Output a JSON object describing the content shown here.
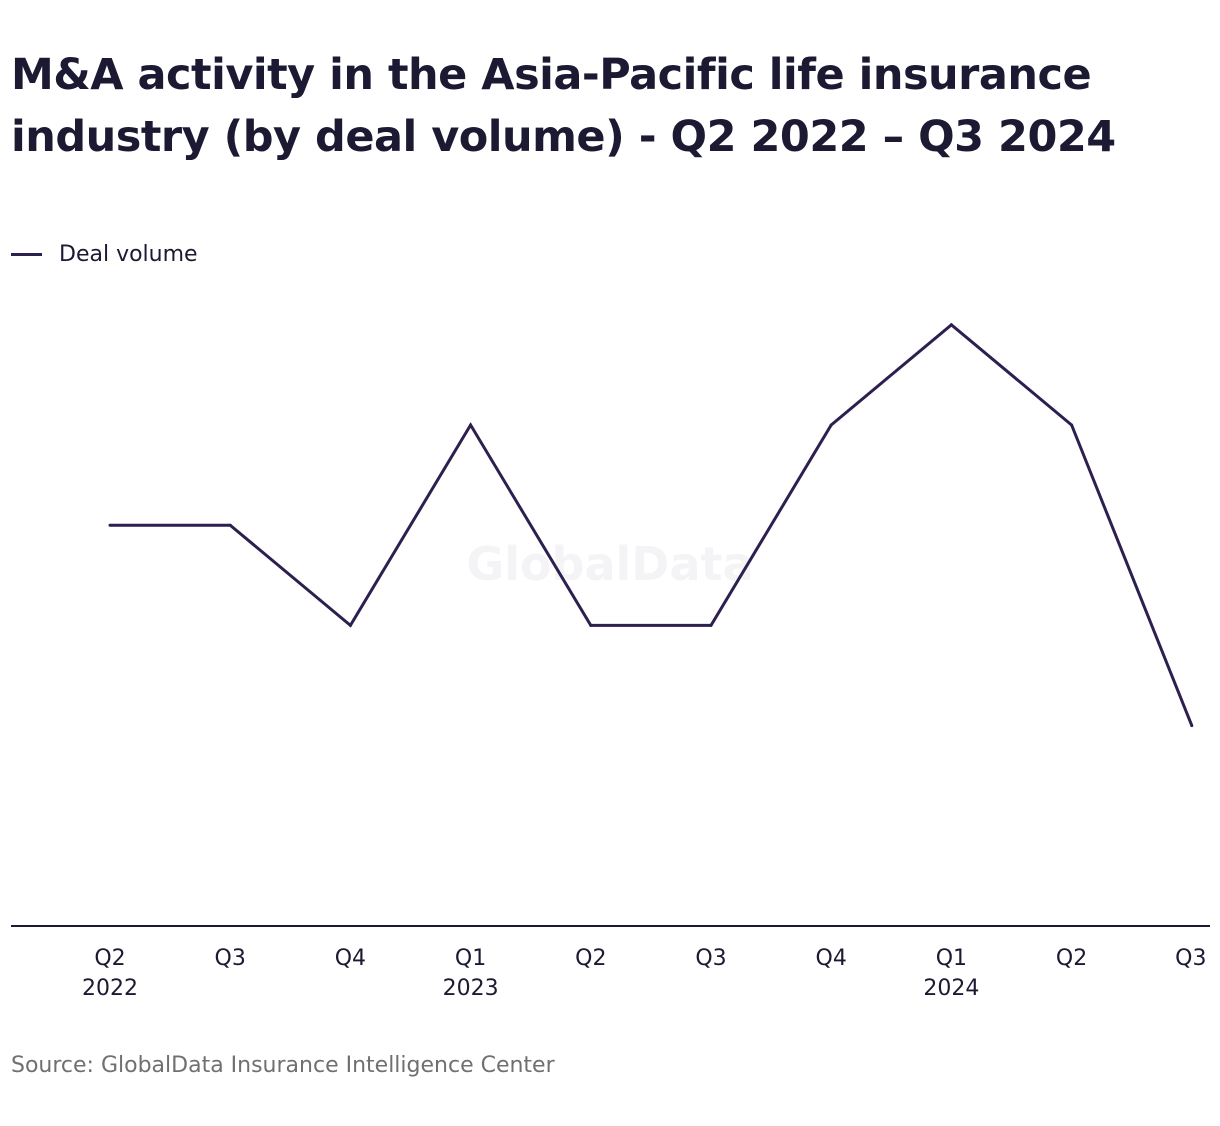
{
  "chart_data": {
    "type": "line",
    "title": "M&A activity in the Asia-Pacific life insurance industry (by deal volume) - Q2 2022 – Q3 2024",
    "categories": [
      {
        "quarter": "Q2",
        "year": "2022"
      },
      {
        "quarter": "Q3",
        "year": ""
      },
      {
        "quarter": "Q4",
        "year": ""
      },
      {
        "quarter": "Q1",
        "year": "2023"
      },
      {
        "quarter": "Q2",
        "year": ""
      },
      {
        "quarter": "Q3",
        "year": ""
      },
      {
        "quarter": "Q4",
        "year": ""
      },
      {
        "quarter": "Q1",
        "year": "2024"
      },
      {
        "quarter": "Q2",
        "year": ""
      },
      {
        "quarter": "Q3",
        "year": ""
      }
    ],
    "series": [
      {
        "name": "Deal volume",
        "color": "#2d1f4f",
        "values": [
          4,
          4,
          3,
          5,
          3,
          3,
          5,
          6,
          5,
          2
        ]
      }
    ],
    "ylim": [
      0,
      6
    ],
    "grid": false,
    "legend": "top-left",
    "watermark": "GlobalData",
    "source": "Source: GlobalData Insurance Intelligence Center"
  }
}
